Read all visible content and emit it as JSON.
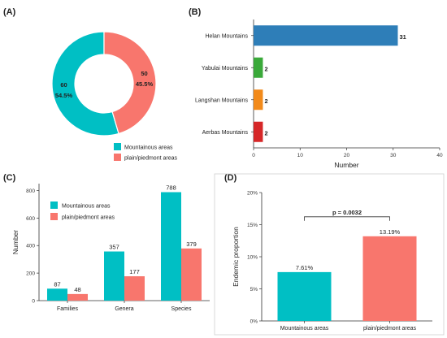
{
  "panels": {
    "A": "(A)",
    "B": "(B)",
    "C": "(C)",
    "D": "(D)"
  },
  "colors": {
    "mountain": "#00BFC4",
    "plain": "#F8766D",
    "blue": "#2E7EB8",
    "green": "#3AA93A",
    "orange": "#F28A1A",
    "red": "#D62728"
  },
  "chart_data": [
    {
      "panel": "A",
      "type": "pie",
      "donut": true,
      "slices": [
        {
          "name": "Mountainous areas",
          "value": 60,
          "percent": "54.5%",
          "color_key": "mountain"
        },
        {
          "name": "plain/piedmont areas",
          "value": 50,
          "percent": "45.5%",
          "color_key": "plain"
        }
      ],
      "legend_position": "bottom-right"
    },
    {
      "panel": "B",
      "type": "bar",
      "orientation": "horizontal",
      "categories": [
        "Helan Mountains",
        "Yabulai Mountains",
        "Langshan Mountains",
        "Aerbas Mountains"
      ],
      "values": [
        31,
        2,
        2,
        2
      ],
      "bar_colors": [
        "blue",
        "green",
        "orange",
        "red"
      ],
      "xlabel": "Number",
      "xlim": [
        0,
        40
      ],
      "xticks": [
        0,
        10,
        20,
        30,
        40
      ]
    },
    {
      "panel": "C",
      "type": "bar",
      "categories": [
        "Families",
        "Genera",
        "Species"
      ],
      "series": [
        {
          "name": "Mountainous areas",
          "color_key": "mountain",
          "values": [
            87,
            357,
            788
          ]
        },
        {
          "name": "plain/piedmont areas",
          "color_key": "plain",
          "values": [
            48,
            177,
            379
          ]
        }
      ],
      "ylabel": "Number",
      "ylim": [
        0,
        850
      ],
      "yticks": [
        0,
        200,
        400,
        600,
        800
      ],
      "legend_position": "top-left"
    },
    {
      "panel": "D",
      "type": "bar",
      "categories": [
        "Mountainous areas",
        "plain/piedmont areas"
      ],
      "values": [
        7.61,
        13.19
      ],
      "value_labels": [
        "7.61%",
        "13.19%"
      ],
      "bar_color_keys": [
        "mountain",
        "plain"
      ],
      "ylabel": "Endemic proportion",
      "ylim": [
        0,
        20
      ],
      "yticks": [
        0,
        5,
        10,
        15,
        20
      ],
      "ytick_labels": [
        "0%",
        "5%",
        "10%",
        "15%",
        "20%"
      ],
      "annotation": "p = 0.0032"
    }
  ]
}
